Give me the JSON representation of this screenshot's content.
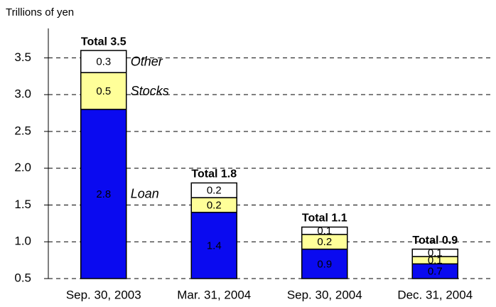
{
  "chart_data": {
    "type": "stacked-bar",
    "y_label": "Trillions of yen",
    "categories": [
      "Sep. 30, 2003",
      "Mar. 31, 2004",
      "Sep. 30, 2004",
      "Dec. 31, 2004"
    ],
    "series": [
      {
        "name": "Loan",
        "color": "#0a0af0",
        "label_color": "#ffffff",
        "values": [
          2.8,
          1.4,
          0.9,
          0.7
        ]
      },
      {
        "name": "Stocks",
        "color": "#ffff99",
        "label_color": "#000000",
        "values": [
          0.5,
          0.2,
          0.2,
          0.1
        ]
      },
      {
        "name": "Other",
        "color": "#ffffff",
        "label_color": "#000000",
        "values": [
          0.3,
          0.2,
          0.1,
          0.1
        ]
      }
    ],
    "total_labels": [
      "Total 3.5",
      "Total 1.8",
      "Total 1.1",
      "Total 0.9"
    ],
    "ylim": [
      0.5,
      3.9
    ],
    "yticks": [
      {
        "value": 0.5,
        "label": "0.5"
      },
      {
        "value": 1.0,
        "label": "1.0"
      },
      {
        "value": 1.5,
        "label": "1.5"
      },
      {
        "value": 2.0,
        "label": "2.0"
      },
      {
        "value": 2.5,
        "label": "2.5"
      },
      {
        "value": 3.0,
        "label": "3.0"
      },
      {
        "value": 3.5,
        "label": "3.5"
      }
    ],
    "grid": true
  }
}
